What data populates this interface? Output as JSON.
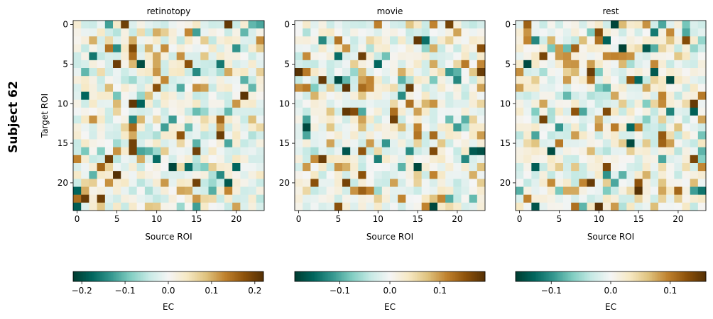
{
  "suptitle": "Subject 62",
  "colormap": [
    "#003c30",
    "#01665e",
    "#35978f",
    "#80cdc1",
    "#c7eae5",
    "#f5f5f5",
    "#f6e8c3",
    "#dfc27d",
    "#bf812d",
    "#8c510a",
    "#543005"
  ],
  "chart_data": [
    {
      "type": "heatmap",
      "title": "retinotopy",
      "xlabel": "Source ROI",
      "ylabel": "Target ROI",
      "n": 24,
      "x_ticks": [
        0,
        5,
        10,
        15,
        20
      ],
      "y_ticks": [
        0,
        5,
        10,
        15,
        20
      ],
      "vmin": -0.22,
      "vmax": 0.22,
      "colorbar": {
        "label": "EC",
        "ticks": [
          -0.2,
          -0.1,
          0.0,
          0.1,
          0.2
        ],
        "tick_labels": [
          "−0.2",
          "−0.1",
          "0.0",
          "0.1",
          "0.2"
        ]
      },
      "seed": 62
    },
    {
      "type": "heatmap",
      "title": "movie",
      "xlabel": "Source ROI",
      "ylabel": "",
      "n": 24,
      "x_ticks": [
        0,
        5,
        10,
        15,
        20
      ],
      "y_ticks": [
        0,
        5,
        10,
        15,
        20
      ],
      "vmin": -0.19,
      "vmax": 0.19,
      "colorbar": {
        "label": "EC",
        "ticks": [
          -0.1,
          0.0,
          0.1
        ],
        "tick_labels": [
          "−0.1",
          "0.0",
          "0.1"
        ]
      },
      "seed": 163
    },
    {
      "type": "heatmap",
      "title": "rest",
      "xlabel": "Source ROI",
      "ylabel": "",
      "n": 24,
      "x_ticks": [
        0,
        5,
        10,
        15,
        20
      ],
      "y_ticks": [
        0,
        5,
        10,
        15,
        20
      ],
      "vmin": -0.16,
      "vmax": 0.16,
      "colorbar": {
        "label": "EC",
        "ticks": [
          -0.1,
          0.0,
          0.1
        ],
        "tick_labels": [
          "−0.1",
          "0.0",
          "0.1"
        ]
      },
      "seed": 271
    }
  ]
}
